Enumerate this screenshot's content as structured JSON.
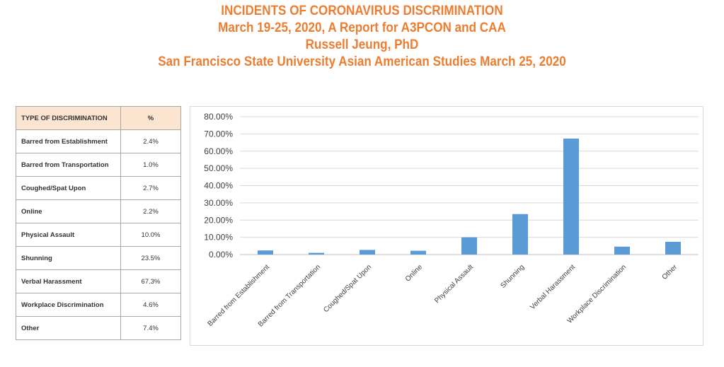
{
  "header": {
    "line1": "INCIDENTS OF CORONAVIRUS DISCRIMINATION",
    "line2": "March 19-25, 2020, A Report for A3PCON and CAA",
    "line3": "Russell Jeung, PhD",
    "line4": "San Francisco State University Asian American Studies March 25, 2020"
  },
  "table": {
    "headers": [
      "TYPE OF DISCRIMINATION",
      "%"
    ],
    "rows": [
      [
        "Barred from Establishment",
        "2.4%"
      ],
      [
        "Barred from Transportation",
        "1.0%"
      ],
      [
        "Coughed/Spat Upon",
        "2.7%"
      ],
      [
        "Online",
        "2.2%"
      ],
      [
        "Physical Assault",
        "10.0%"
      ],
      [
        "Shunning",
        "23.5%"
      ],
      [
        "Verbal Harassment",
        "67.3%"
      ],
      [
        "Workplace Discrimination",
        "4.6%"
      ],
      [
        "Other",
        "7.4%"
      ]
    ]
  },
  "colors": {
    "title": "#ED7D31",
    "bar": "#5B9BD5",
    "header_bg": "#FBE4D0"
  },
  "chart_data": {
    "type": "bar",
    "categories": [
      "Barred from Establishment",
      "Barred from Transportation",
      "Coughed/Spat Upon",
      "Online",
      "Physical Assault",
      "Shunning",
      "Verbal Harassment",
      "Workplace Discrimination",
      "Other"
    ],
    "values": [
      2.4,
      1.0,
      2.7,
      2.2,
      10.0,
      23.5,
      67.3,
      4.6,
      7.4
    ],
    "ylim": [
      0,
      80
    ],
    "yticks": [
      "0.00%",
      "10.00%",
      "20.00%",
      "30.00%",
      "40.00%",
      "50.00%",
      "60.00%",
      "70.00%",
      "80.00%"
    ],
    "grid": true,
    "xlabel": "",
    "ylabel": "",
    "title": ""
  }
}
